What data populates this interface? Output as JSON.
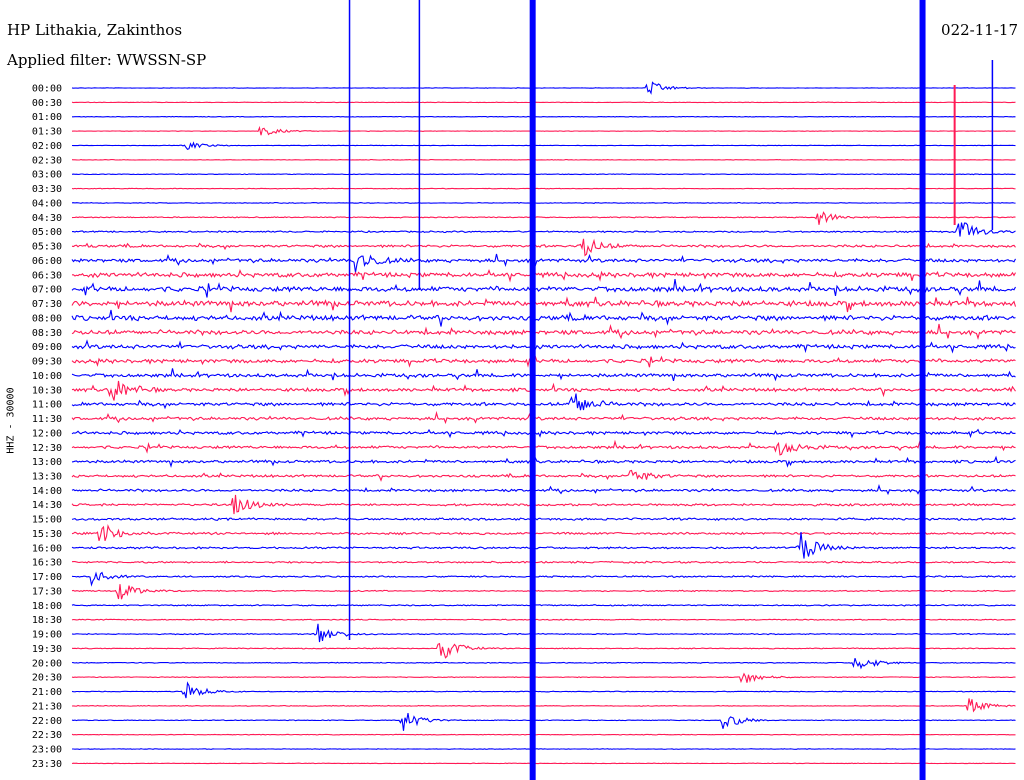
{
  "header": {
    "station": "HP Lithakia, Zakinthos",
    "filter": "Applied filter: WWSSN-SP",
    "date": "022-11-17"
  },
  "chart_data": {
    "type": "line",
    "title": "HP Lithakia, Zakinthos",
    "subtitle": "Applied filter: WWSSN-SP",
    "ylabel": "HHZ - 30000",
    "colors": [
      "#0000ff",
      "#ff1a55"
    ],
    "rows": [
      "00:00",
      "00:30",
      "01:00",
      "01:30",
      "02:00",
      "02:30",
      "03:00",
      "03:30",
      "04:00",
      "04:30",
      "05:00",
      "05:30",
      "06:00",
      "06:30",
      "07:00",
      "07:30",
      "08:00",
      "08:30",
      "09:00",
      "09:30",
      "10:00",
      "10:30",
      "11:00",
      "11:30",
      "12:00",
      "12:30",
      "13:00",
      "13:30",
      "14:00",
      "14:30",
      "15:00",
      "15:30",
      "16:00",
      "16:30",
      "17:00",
      "17:30",
      "18:00",
      "18:30",
      "19:00",
      "19:30",
      "20:00",
      "20:30",
      "21:00",
      "21:30",
      "22:00",
      "22:30",
      "23:00",
      "23:30"
    ],
    "noise_level": [
      0.2,
      0.2,
      0.2,
      0.2,
      0.2,
      0.2,
      0.25,
      0.25,
      0.3,
      0.4,
      0.6,
      1.0,
      1.4,
      1.8,
      2.0,
      2.2,
      2.0,
      1.8,
      1.6,
      1.5,
      1.4,
      1.3,
      1.3,
      1.2,
      1.2,
      1.1,
      1.1,
      1.0,
      1.0,
      0.9,
      0.9,
      0.9,
      0.8,
      0.7,
      0.6,
      0.5,
      0.5,
      0.4,
      0.4,
      0.35,
      0.35,
      0.3,
      0.3,
      0.3,
      0.3,
      0.25,
      0.25,
      0.2
    ],
    "events": [
      {
        "row": 0,
        "x": 0.61,
        "amp": 8
      },
      {
        "row": 3,
        "x": 0.2,
        "amp": 6
      },
      {
        "row": 4,
        "x": 0.12,
        "amp": 5
      },
      {
        "row": 9,
        "x": 0.79,
        "amp": 8
      },
      {
        "row": 10,
        "x": 0.94,
        "amp": 14
      },
      {
        "row": 11,
        "x": 0.54,
        "amp": 12
      },
      {
        "row": 12,
        "x": 0.3,
        "amp": 14
      },
      {
        "row": 21,
        "x": 0.04,
        "amp": 16
      },
      {
        "row": 22,
        "x": 0.53,
        "amp": 14
      },
      {
        "row": 25,
        "x": 0.75,
        "amp": 10
      },
      {
        "row": 27,
        "x": 0.59,
        "amp": 9
      },
      {
        "row": 29,
        "x": 0.17,
        "amp": 12
      },
      {
        "row": 31,
        "x": 0.03,
        "amp": 12
      },
      {
        "row": 32,
        "x": 0.77,
        "amp": 18
      },
      {
        "row": 34,
        "x": 0.02,
        "amp": 8
      },
      {
        "row": 35,
        "x": 0.05,
        "amp": 10
      },
      {
        "row": 38,
        "x": 0.26,
        "amp": 12
      },
      {
        "row": 39,
        "x": 0.39,
        "amp": 14
      },
      {
        "row": 40,
        "x": 0.83,
        "amp": 10
      },
      {
        "row": 41,
        "x": 0.71,
        "amp": 8
      },
      {
        "row": 42,
        "x": 0.12,
        "amp": 10
      },
      {
        "row": 43,
        "x": 0.95,
        "amp": 8
      },
      {
        "row": 44,
        "x": 0.35,
        "amp": 12
      },
      {
        "row": 44,
        "x": 0.69,
        "amp": 10
      }
    ],
    "spikes": [
      {
        "x": 0.294,
        "color": "#0000ff",
        "width": 1.5,
        "y0": 0,
        "y1": 640
      },
      {
        "x": 0.368,
        "color": "#0000ff",
        "width": 1.5,
        "y0": 0,
        "y1": 290
      },
      {
        "x": 0.488,
        "color": "#0000ff",
        "width": 6,
        "y0": 0,
        "y1": 780
      },
      {
        "x": 0.901,
        "color": "#0000ff",
        "width": 6,
        "y0": 0,
        "y1": 780
      },
      {
        "x": 0.935,
        "color": "#ff1a55",
        "width": 2,
        "y0": 85,
        "y1": 225
      },
      {
        "x": 0.975,
        "color": "#0000ff",
        "width": 1.5,
        "y0": 60,
        "y1": 230
      }
    ]
  }
}
